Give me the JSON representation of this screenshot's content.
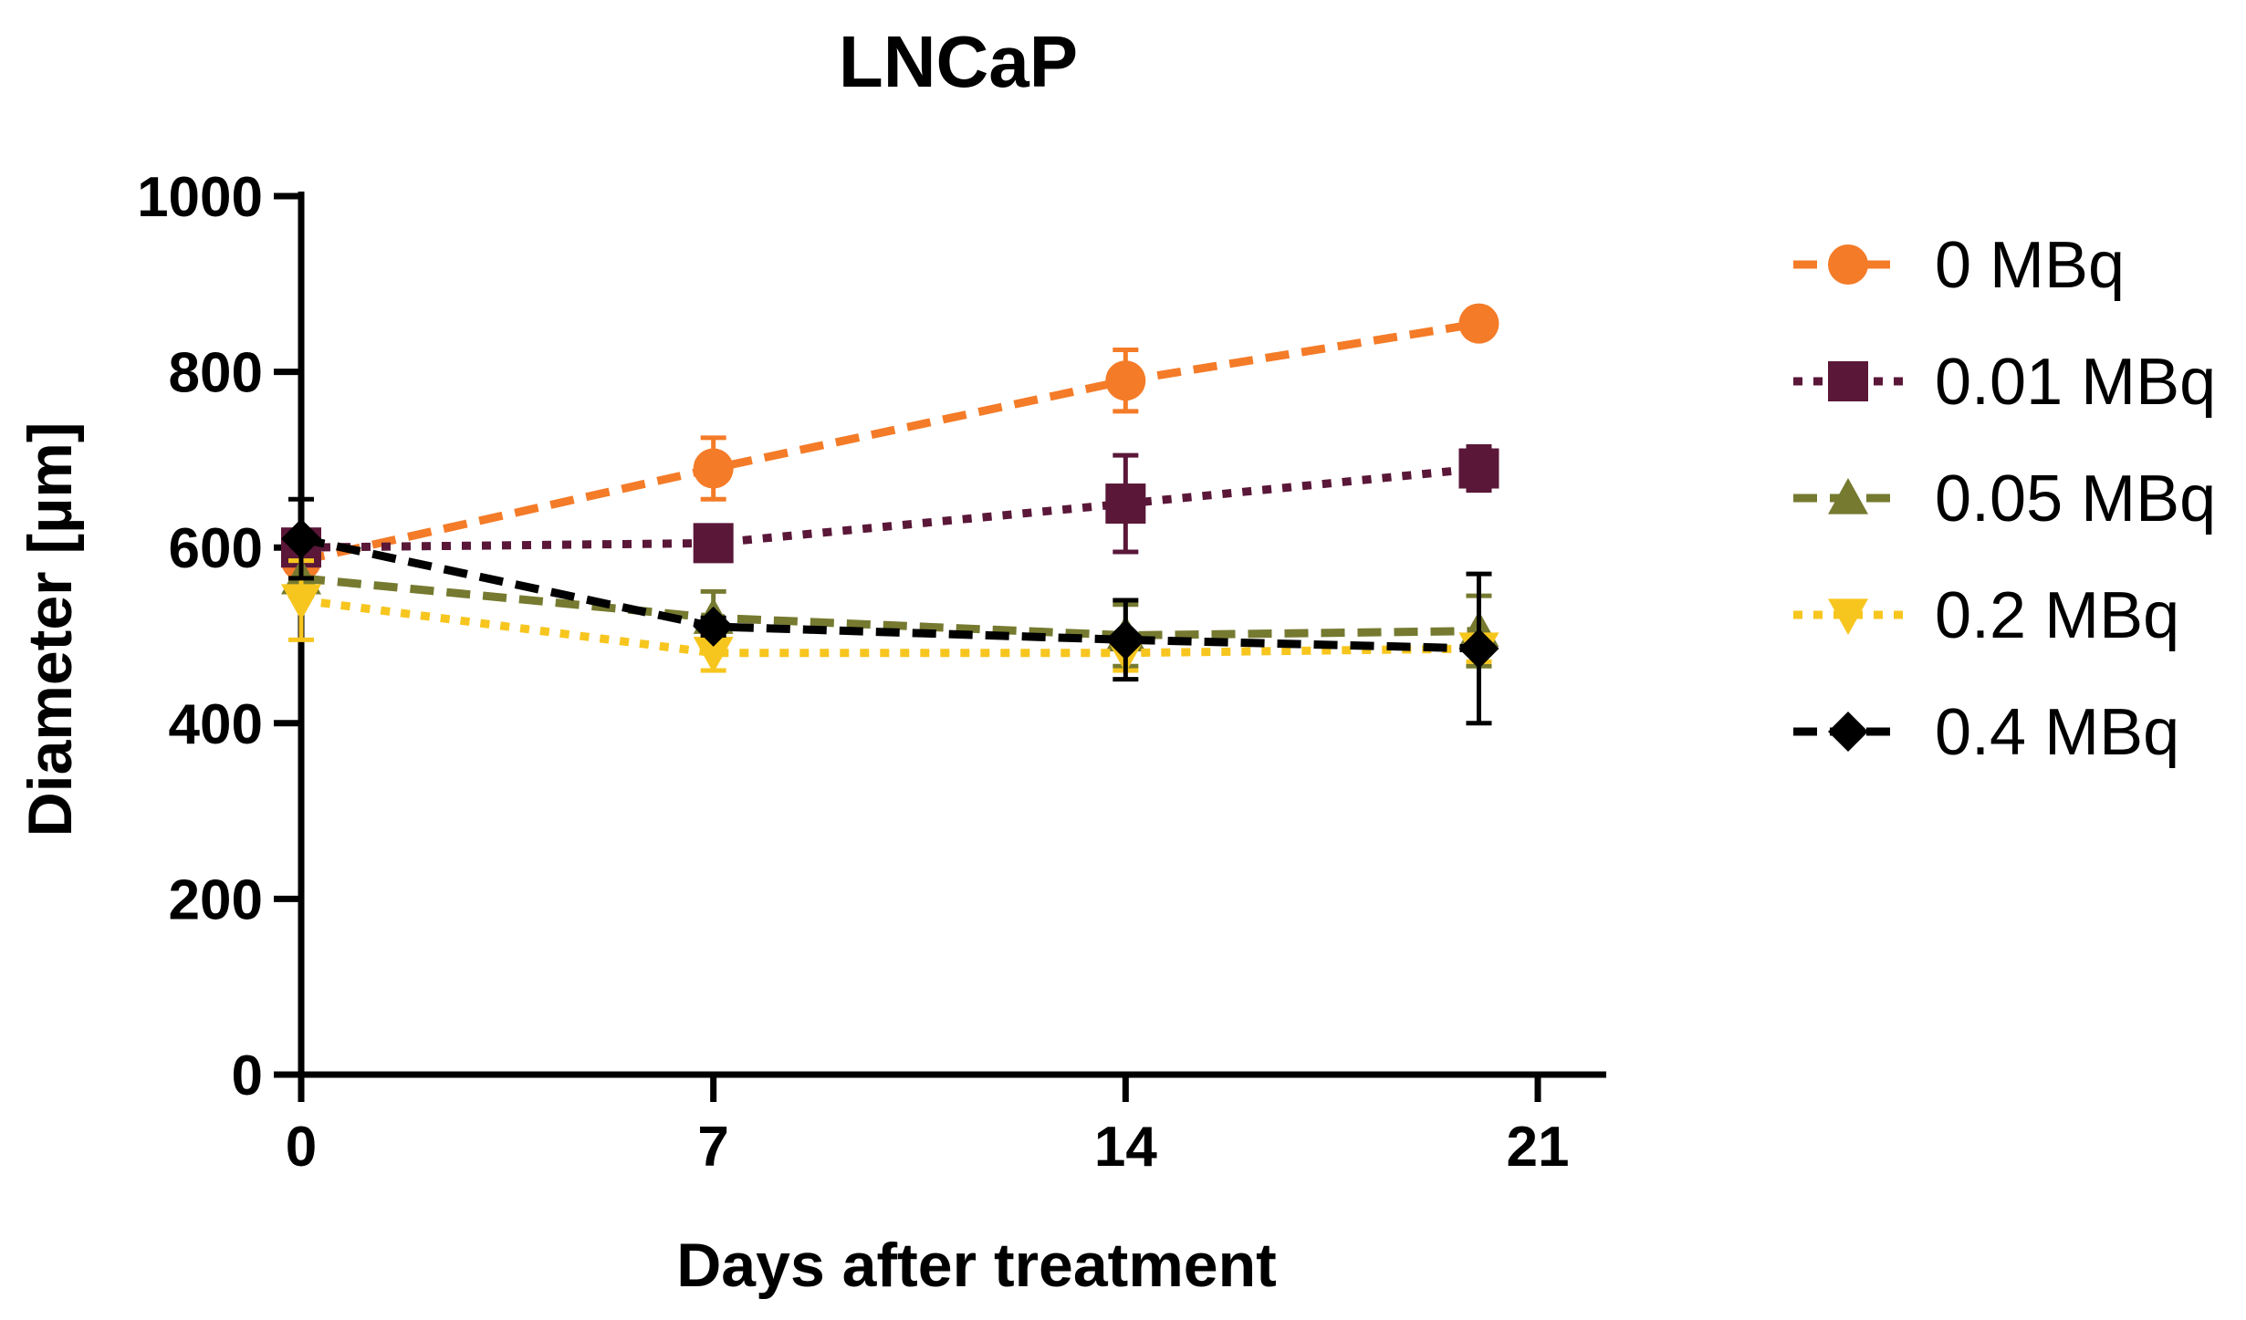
{
  "chart_data": {
    "type": "line",
    "title": "LNCaP",
    "xlabel": "Days after treatment",
    "ylabel": "Diameter [µm]",
    "xlim": [
      0,
      21
    ],
    "ylim": [
      0,
      1000
    ],
    "xticks": [
      "0",
      "7",
      "14",
      "21"
    ],
    "yticks": [
      "0",
      "200",
      "400",
      "600",
      "800",
      "1000"
    ],
    "grid": false,
    "legend_position": "right",
    "x": [
      0,
      7,
      14,
      20
    ],
    "series": [
      {
        "name": "0 MBq",
        "values": [
          585,
          690,
          790,
          855
        ],
        "errors": [
          25,
          35,
          35,
          8
        ],
        "color": "#f47b28",
        "marker": "circle",
        "dash": "dashed"
      },
      {
        "name": "0.01 MBq",
        "values": [
          600,
          605,
          650,
          690
        ],
        "errors": [
          20,
          10,
          55,
          25
        ],
        "color": "#5a1738",
        "marker": "square",
        "dash": "dotted"
      },
      {
        "name": "0.05 MBq",
        "values": [
          565,
          520,
          500,
          505
        ],
        "errors": [
          20,
          30,
          35,
          40
        ],
        "color": "#767a30",
        "marker": "triangle-up",
        "dash": "dashed"
      },
      {
        "name": "0.2 MBq",
        "values": [
          540,
          480,
          480,
          485
        ],
        "errors": [
          45,
          20,
          20,
          15
        ],
        "color": "#f7c61e",
        "marker": "triangle-down",
        "dash": "dotted"
      },
      {
        "name": "0.4 MBq",
        "values": [
          610,
          510,
          495,
          485
        ],
        "errors": [
          45,
          10,
          45,
          85
        ],
        "color": "#000000",
        "marker": "diamond",
        "dash": "dashed"
      }
    ]
  }
}
